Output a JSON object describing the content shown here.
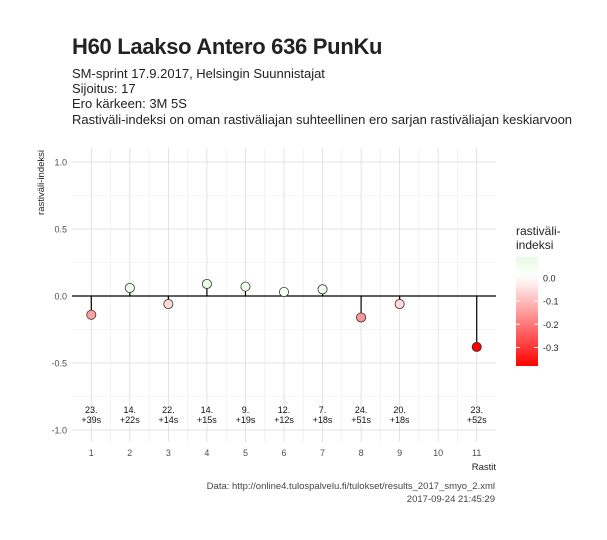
{
  "title": "H60 Laakso Antero 636 PunKu",
  "subtitle_lines": [
    "SM-sprint 17.9.2017, Helsingin Suunnistajat",
    "Sijoitus: 17",
    "Ero kärkeen: 3M 5S",
    "Rastiväli-indeksi on oman rastiväliajan suhteellinen ero sarjan rastiväliajan keskiarvoon"
  ],
  "caption_lines": [
    "Data: http://online4.tulospalvelu.fi/tulokset/results_2017_smyo_2.xml",
    "2017-09-24 21:45:29"
  ],
  "chart_data": {
    "type": "scatter",
    "xlabel": "Rastit",
    "ylabel": "rastiväli-indeksi",
    "xlim": [
      0.5,
      11.5
    ],
    "ylim": [
      -1.0,
      1.0
    ],
    "x_ticks": [
      "1",
      "2",
      "3",
      "4",
      "5",
      "6",
      "7",
      "8",
      "9",
      "10",
      "11"
    ],
    "y_ticks": [
      "1.0",
      "0.5",
      "0.0",
      "-0.5",
      "-1.0"
    ],
    "y_tick_values": [
      1.0,
      0.5,
      0.0,
      -0.5,
      -1.0
    ],
    "grid": true,
    "baseline": 0,
    "points": [
      {
        "x": 1,
        "y": -0.14,
        "label": "23.\n+39s"
      },
      {
        "x": 2,
        "y": 0.06,
        "label": "14.\n+22s"
      },
      {
        "x": 3,
        "y": -0.06,
        "label": "22.\n+14s"
      },
      {
        "x": 4,
        "y": 0.09,
        "label": "14.\n+15s"
      },
      {
        "x": 5,
        "y": 0.07,
        "label": "9.\n+19s"
      },
      {
        "x": 6,
        "y": 0.03,
        "label": "12.\n+12s"
      },
      {
        "x": 7,
        "y": 0.05,
        "label": "7.\n+18s"
      },
      {
        "x": 8,
        "y": -0.16,
        "label": "24.\n+51s"
      },
      {
        "x": 9,
        "y": -0.06,
        "label": "20.\n+18s"
      },
      {
        "x": 11,
        "y": -0.38,
        "label": "23.\n+52s"
      }
    ],
    "legend": {
      "title": "rastiväli-\nindeksi",
      "position": "right",
      "ticks": [
        "0.0",
        "-0.1",
        "-0.2",
        "-0.3"
      ],
      "tick_values": [
        0.0,
        -0.1,
        -0.2,
        -0.3
      ],
      "range": [
        -0.38,
        0.09
      ],
      "colors": {
        "high": "#e8fbe3",
        "mid": "#ffffff",
        "low": "#ff0000"
      }
    }
  }
}
